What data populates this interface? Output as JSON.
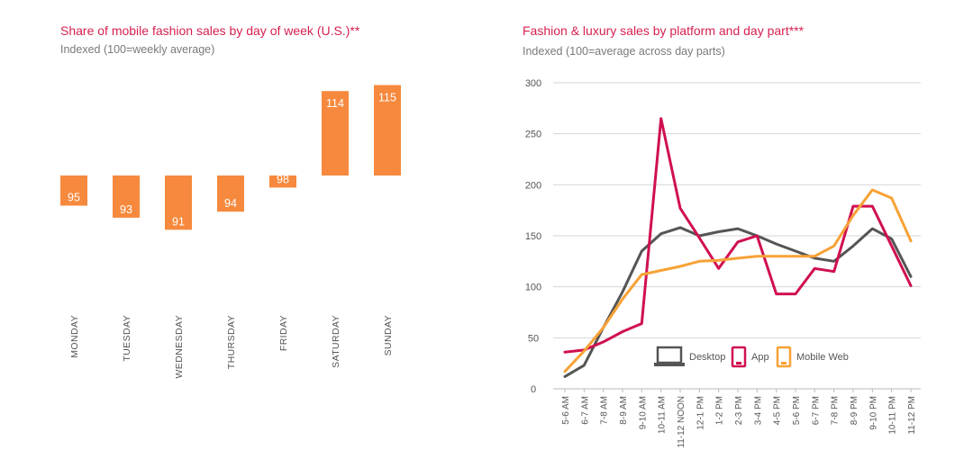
{
  "chart_data": [
    {
      "type": "bar",
      "title": "Share of mobile fashion sales by day of week (U.S.)**",
      "subtitle": "Indexed (100=weekly average)",
      "baseline": 100,
      "categories": [
        "MONDAY",
        "TUESDAY",
        "WEDNESDAY",
        "THURSDAY",
        "FRIDAY",
        "SATURDAY",
        "SUNDAY"
      ],
      "values": [
        95,
        93,
        91,
        94,
        98,
        114,
        115
      ],
      "color": "#f6893d"
    },
    {
      "type": "line",
      "title": "Fashion & luxury sales by platform and day part***",
      "subtitle": "Indexed (100=average across day parts)",
      "ylim": [
        0,
        300
      ],
      "yticks": [
        0,
        50,
        100,
        150,
        200,
        250,
        300
      ],
      "grid": true,
      "legend": "bottom-center",
      "categories": [
        "5-6 AM",
        "6-7 AM",
        "7-8 AM",
        "8-9 AM",
        "9-10 AM",
        "10-11 AM",
        "11-12 NOON",
        "12-1 PM",
        "1-2 PM",
        "2-3 PM",
        "3-4 PM",
        "4-5 PM",
        "5-6 PM",
        "6-7 PM",
        "7-8 PM",
        "8-9 PM",
        "9-10 PM",
        "10-11 PM",
        "11-12 PM"
      ],
      "series": [
        {
          "name": "Desktop",
          "icon": "laptop-icon",
          "color": "#555555",
          "values": [
            12,
            23,
            60,
            95,
            135,
            152,
            158,
            150,
            154,
            157,
            150,
            142,
            135,
            128,
            125,
            140,
            157,
            147,
            110
          ]
        },
        {
          "name": "App",
          "icon": "smartphone-icon",
          "color": "#d0104f",
          "values": [
            36,
            38,
            46,
            56,
            64,
            265,
            177,
            148,
            118,
            144,
            150,
            93,
            93,
            118,
            115,
            179,
            179,
            140,
            101
          ]
        },
        {
          "name": "Mobile Web",
          "icon": "mobile-icon",
          "color": "#f7a236",
          "values": [
            17,
            37,
            60,
            88,
            112,
            116,
            120,
            125,
            126,
            128,
            130,
            130,
            130,
            130,
            140,
            170,
            195,
            187,
            145
          ]
        }
      ]
    }
  ]
}
